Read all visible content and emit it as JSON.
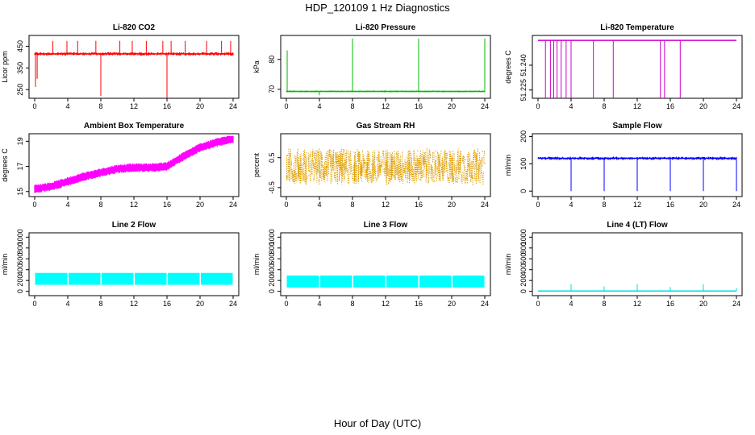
{
  "figure": {
    "title": "HDP_120109  1 Hz Diagnostics",
    "xlabel": "Hour of Day (UTC)"
  },
  "chart_data": [
    {
      "type": "line",
      "title": "Li-820 CO2",
      "ylabel": "Licor ppm",
      "color": "#ff0000",
      "xlim": [
        0,
        24
      ],
      "ylim": [
        210,
        500
      ],
      "xticks": [
        "0",
        "4",
        "8",
        "12",
        "16",
        "20",
        "24"
      ],
      "yticks": [
        "250",
        "350",
        "450"
      ],
      "baseline": 415,
      "band": 8,
      "spikes": [
        [
          0.1,
          262
        ],
        [
          0.3,
          300
        ],
        [
          2.2,
          475
        ],
        [
          3.9,
          475
        ],
        [
          5.2,
          475
        ],
        [
          7.4,
          475
        ],
        [
          8.0,
          220
        ],
        [
          10.3,
          475
        ],
        [
          11.8,
          475
        ],
        [
          13.5,
          475
        ],
        [
          15.5,
          475
        ],
        [
          16.0,
          210
        ],
        [
          16.5,
          475
        ],
        [
          18.2,
          475
        ],
        [
          20.8,
          475
        ],
        [
          22.6,
          475
        ],
        [
          23.7,
          475
        ]
      ]
    },
    {
      "type": "line",
      "title": "Li-820 Pressure",
      "ylabel": "kPa",
      "color": "#00bb00",
      "xlim": [
        0,
        24
      ],
      "ylim": [
        67,
        88
      ],
      "xticks": [
        "0",
        "4",
        "8",
        "12",
        "16",
        "20",
        "24"
      ],
      "yticks": [
        "70",
        "80"
      ],
      "baseline": 69.3,
      "band": 0.3,
      "spikes": [
        [
          0.1,
          83
        ],
        [
          4.0,
          68
        ],
        [
          8.0,
          87
        ],
        [
          16.0,
          87
        ],
        [
          24.0,
          87
        ]
      ]
    },
    {
      "type": "line",
      "title": "Li-820 Temperature",
      "ylabel": "degrees C",
      "color": "#cc00cc",
      "xlim": [
        0,
        24
      ],
      "ylim": [
        51.22,
        51.258
      ],
      "xticks": [
        "0",
        "4",
        "8",
        "12",
        "16",
        "20",
        "24"
      ],
      "yticks": [
        "51.225",
        "51.240"
      ],
      "baseline": 51.255,
      "band": 0,
      "spikes": [
        [
          0.9,
          51.22
        ],
        [
          1.5,
          51.22
        ],
        [
          1.9,
          51.22
        ],
        [
          2.3,
          51.22
        ],
        [
          2.8,
          51.22
        ],
        [
          3.4,
          51.22
        ],
        [
          4.0,
          51.22
        ],
        [
          6.7,
          51.22
        ],
        [
          9.1,
          51.22
        ],
        [
          14.8,
          51.22
        ],
        [
          15.3,
          51.22
        ],
        [
          17.2,
          51.22
        ]
      ]
    },
    {
      "type": "line",
      "title": "Ambient Box Temperature",
      "ylabel": "degrees C",
      "color": "#ff00ff",
      "xlim": [
        0,
        24
      ],
      "ylim": [
        14.6,
        19.6
      ],
      "xticks": [
        "0",
        "4",
        "8",
        "12",
        "16",
        "20",
        "24"
      ],
      "yticks": [
        "15",
        "17",
        "19"
      ],
      "x": [
        0,
        2,
        4,
        6,
        8,
        10,
        12,
        14,
        16,
        18,
        20,
        22,
        24
      ],
      "y": [
        15.2,
        15.4,
        15.8,
        16.2,
        16.5,
        16.8,
        16.9,
        16.9,
        17.0,
        17.8,
        18.5,
        18.9,
        19.2
      ],
      "band": 0.35
    },
    {
      "type": "scatter",
      "title": "Gas Stream RH",
      "ylabel": "percent",
      "color": "#e0a000",
      "xlim": [
        0,
        24
      ],
      "ylim": [
        -0.8,
        1.3
      ],
      "xticks": [
        "0",
        "4",
        "8",
        "12",
        "16",
        "20",
        "24"
      ],
      "yticks": [
        "-0.5",
        "0.5"
      ],
      "baseline": 0.2,
      "band": 0.65
    },
    {
      "type": "line",
      "title": "Sample Flow",
      "ylabel": "ml/min",
      "color": "#0000ff",
      "xlim": [
        0,
        24
      ],
      "ylim": [
        -20,
        210
      ],
      "xticks": [
        "0",
        "4",
        "8",
        "12",
        "16",
        "20",
        "24"
      ],
      "yticks": [
        "0",
        "100",
        "200"
      ],
      "baseline": 120,
      "band": 6,
      "spikes": [
        [
          4.0,
          0
        ],
        [
          8.0,
          0
        ],
        [
          12.0,
          0
        ],
        [
          16.0,
          0
        ],
        [
          20.0,
          0
        ],
        [
          24.0,
          0
        ]
      ]
    },
    {
      "type": "area",
      "title": "Line 2 Flow",
      "ylabel": "ml/min",
      "color": "#00ffff",
      "xlim": [
        0,
        24
      ],
      "ylim": [
        -80,
        1080
      ],
      "xticks": [
        "0",
        "4",
        "8",
        "12",
        "16",
        "20",
        "24"
      ],
      "yticks": [
        "0",
        "200",
        "400",
        "600",
        "800",
        "1000"
      ],
      "low": 120,
      "high": 340
    },
    {
      "type": "area",
      "title": "Line 3 Flow",
      "ylabel": "ml/min",
      "color": "#00ffff",
      "xlim": [
        0,
        24
      ],
      "ylim": [
        -80,
        1080
      ],
      "xticks": [
        "0",
        "4",
        "8",
        "12",
        "16",
        "20",
        "24"
      ],
      "yticks": [
        "0",
        "200",
        "400",
        "600",
        "800",
        "1000"
      ],
      "low": 70,
      "high": 290
    },
    {
      "type": "line",
      "title": "Line 4 (LT) Flow",
      "ylabel": "ml/min",
      "color": "#00dddd",
      "xlim": [
        0,
        24
      ],
      "ylim": [
        -80,
        1080
      ],
      "xticks": [
        "0",
        "4",
        "8",
        "12",
        "16",
        "20",
        "24"
      ],
      "yticks": [
        "0",
        "200",
        "400",
        "600",
        "800",
        "1000"
      ],
      "baseline": 5,
      "band": 0,
      "spikes": [
        [
          4.0,
          130
        ],
        [
          8.0,
          90
        ],
        [
          12.0,
          130
        ],
        [
          16.0,
          80
        ],
        [
          20.0,
          130
        ],
        [
          24.0,
          60
        ]
      ]
    }
  ]
}
